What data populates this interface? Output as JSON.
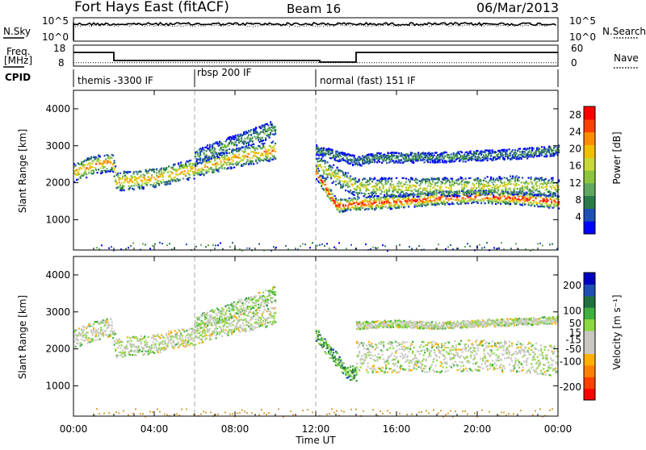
{
  "header": {
    "station": "Fort Hays East (fitACF)",
    "beam": "Beam 16",
    "date": "06/Mar/2013"
  },
  "top_panels": {
    "nsky_label": "N.Sky",
    "nsearch_label": "N.Search",
    "nsky_ticks": [
      "10^5",
      "10^0"
    ],
    "nsearch_ticks": [
      "10^5",
      "10^0"
    ],
    "freq_label_line1": "Freq.",
    "freq_label_line2": "[MHz]",
    "freq_ticks": [
      "18",
      "8"
    ],
    "nave_label": "Nave",
    "nave_ticks": [
      "60",
      "0"
    ],
    "cpid_label": "CPID",
    "cpid_segments": [
      {
        "label": "themis -3300 IF",
        "start": 0,
        "end": 6
      },
      {
        "label": "rbsp 200 IF",
        "start": 6,
        "end": 12
      },
      {
        "label": "normal (fast) 151 IF",
        "start": 12,
        "end": 24
      }
    ],
    "freq_steps": [
      {
        "start": 0,
        "end": 2,
        "value": 14.5
      },
      {
        "start": 2,
        "end": 12.2,
        "value": 9.5
      },
      {
        "start": 12.2,
        "end": 14,
        "value": 8.5
      },
      {
        "start": 14,
        "end": 24,
        "value": 14.5
      }
    ],
    "nave_dotted": 10
  },
  "colors": {
    "power": [
      "#0000ff",
      "#1f4fb4",
      "#2a7a4a",
      "#60a860",
      "#8cc63e",
      "#c8d838",
      "#f0c000",
      "#ff8c00",
      "#ff4000",
      "#ff0000"
    ],
    "velocity": [
      "#ff0000",
      "#ff4000",
      "#ff8000",
      "#ffb000",
      "#c8c8c0",
      "#c8c8c0",
      "#8cd840",
      "#40b040",
      "#207040",
      "#1f4fb4",
      "#0000c0"
    ],
    "ground": "#d8a040"
  },
  "chart_data": [
    {
      "type": "heatmap",
      "title": "",
      "xlabel": "Time UT",
      "ylabel": "Slant Range [km]",
      "xlim": [
        0,
        24
      ],
      "ylim": [
        180,
        4500
      ],
      "x_ticks": [
        "00:00",
        "04:00",
        "08:00",
        "12:00",
        "16:00",
        "20:00",
        "00:00"
      ],
      "y_ticks": [
        1000,
        2000,
        3000,
        4000
      ],
      "colorbar_label": "Power [dB]",
      "colorbar_ticks": [
        4,
        8,
        12,
        16,
        20,
        24,
        28
      ],
      "colorbar_range": [
        0,
        30
      ],
      "bands": [
        {
          "name": "main-echo",
          "points": [
            [
              0,
              2300
            ],
            [
              1,
              2500
            ],
            [
              1.9,
              2600
            ],
            [
              2.1,
              2050
            ],
            [
              4,
              2150
            ],
            [
              6,
              2400
            ],
            [
              8,
              2700
            ],
            [
              10,
              2900
            ]
          ],
          "width": 260,
          "level": 0.75
        },
        {
          "name": "upper-echo",
          "points": [
            [
              6,
              2700
            ],
            [
              7,
              2900
            ],
            [
              8.5,
              3200
            ],
            [
              10,
              3500
            ]
          ],
          "width": 220,
          "level": 0.35
        },
        {
          "name": "late-main",
          "points": [
            [
              12,
              2300
            ],
            [
              13,
              1400
            ],
            [
              14,
              1450
            ],
            [
              16,
              1500
            ],
            [
              18,
              1600
            ],
            [
              20,
              1650
            ],
            [
              22,
              1600
            ],
            [
              24,
              1500
            ]
          ],
          "width": 180,
          "level": 0.95
        },
        {
          "name": "late-mid",
          "points": [
            [
              12,
              2500
            ],
            [
              14,
              1900
            ],
            [
              18,
              1900
            ],
            [
              22,
              1950
            ],
            [
              24,
              1900
            ]
          ],
          "width": 260,
          "level": 0.6
        },
        {
          "name": "late-upper",
          "points": [
            [
              12,
              2900
            ],
            [
              14,
              2600
            ],
            [
              15,
              2700
            ],
            [
              18,
              2700
            ],
            [
              22,
              2800
            ],
            [
              24,
              2900
            ]
          ],
          "width": 140,
          "level": 0.3
        }
      ]
    },
    {
      "type": "heatmap",
      "title": "",
      "xlabel": "Time UT",
      "ylabel": "Slant Range [km]",
      "xlim": [
        0,
        24
      ],
      "ylim": [
        180,
        4500
      ],
      "x_ticks": [
        "00:00",
        "04:00",
        "08:00",
        "12:00",
        "16:00",
        "20:00",
        "00:00"
      ],
      "y_ticks": [
        1000,
        2000,
        3000,
        4000
      ],
      "colorbar_label": "Velocity [m s⁻¹]",
      "colorbar_ticks": [
        200,
        100,
        50,
        15,
        -15,
        -50,
        -100,
        -200
      ],
      "colorbar_range": [
        -250,
        250
      ],
      "bands": [
        {
          "name": "main-echo",
          "points": [
            [
              0,
              2300
            ],
            [
              1,
              2500
            ],
            [
              1.9,
              2600
            ],
            [
              2.1,
              2050
            ],
            [
              4,
              2150
            ],
            [
              6,
              2400
            ],
            [
              8,
              2700
            ],
            [
              10,
              2900
            ]
          ],
          "width": 260,
          "level": 0.5
        },
        {
          "name": "upper-echo",
          "points": [
            [
              6,
              2700
            ],
            [
              7,
              2900
            ],
            [
              8.5,
              3200
            ],
            [
              10,
              3500
            ]
          ],
          "width": 220,
          "level": 0.55
        },
        {
          "name": "late-green",
          "points": [
            [
              12,
              2400
            ],
            [
              13.5,
              1400
            ],
            [
              14,
              1350
            ]
          ],
          "width": 200,
          "level": 0.7
        },
        {
          "name": "late-main",
          "points": [
            [
              14,
              1800
            ],
            [
              16,
              1800
            ],
            [
              18,
              1800
            ],
            [
              20,
              1850
            ],
            [
              22,
              1800
            ],
            [
              24,
              1700
            ]
          ],
          "width": 420,
          "level": 0.5
        },
        {
          "name": "late-upper",
          "points": [
            [
              14,
              2650
            ],
            [
              16,
              2700
            ],
            [
              18,
              2650
            ],
            [
              20,
              2700
            ],
            [
              22,
              2750
            ],
            [
              24,
              2800
            ]
          ],
          "width": 100,
          "level": 0.5
        }
      ]
    }
  ]
}
